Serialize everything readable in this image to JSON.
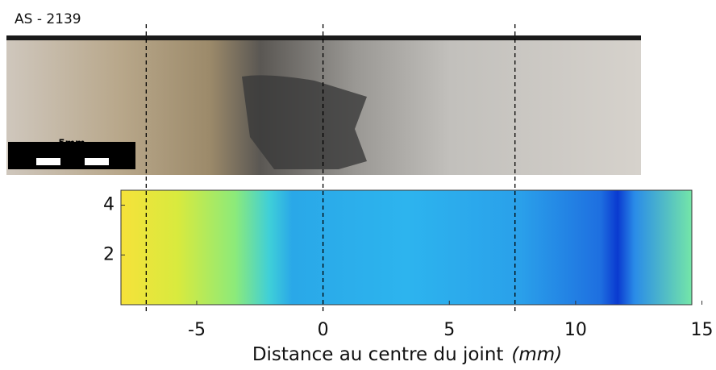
{
  "chart_data": {
    "type": "heatmap",
    "title": "AS - 2139",
    "scale_bar_label": "5mm",
    "xlabel": "Distance au centre du joint",
    "xlabel_unit": "(mm)",
    "xlim": [
      -8,
      14.6
    ],
    "xticks": [
      -5,
      0,
      5,
      10,
      15
    ],
    "ylim": [
      0,
      4.6
    ],
    "yticks": [
      2,
      4
    ],
    "dashed_lines": [
      -7,
      0,
      7.6
    ]
  }
}
